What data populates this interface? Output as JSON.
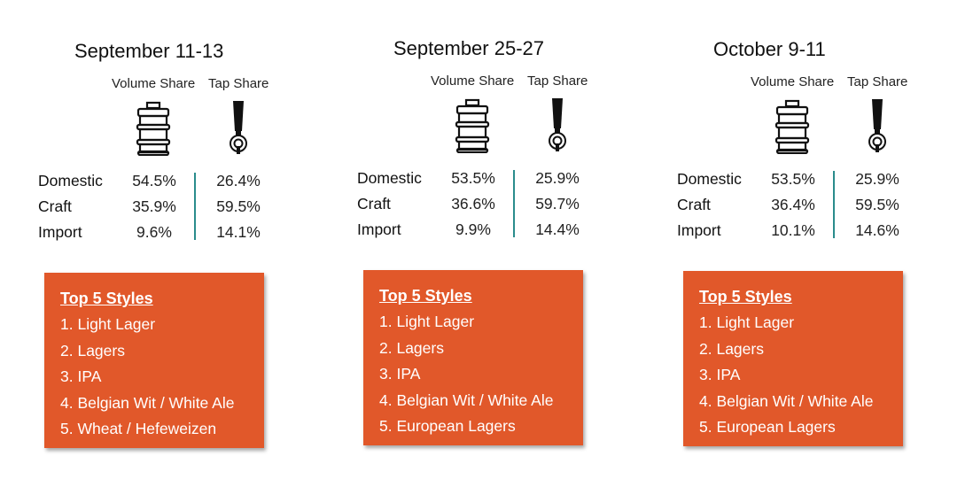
{
  "periods": [
    {
      "title": "September 11-13",
      "volume_header": "Volume Share",
      "tap_header": "Tap Share",
      "rows": [
        {
          "label": "Domestic",
          "volume": "54.5%",
          "tap": "26.4%"
        },
        {
          "label": "Craft",
          "volume": "35.9%",
          "tap": "59.5%"
        },
        {
          "label": "Import",
          "volume": "9.6%",
          "tap": "14.1%"
        }
      ],
      "top_styles_title": "Top 5 Styles",
      "top_styles": [
        "1. Light Lager",
        "2. Lagers",
        "3. IPA",
        "4. Belgian Wit / White Ale",
        "5. Wheat / Hefeweizen"
      ]
    },
    {
      "title": "September 25-27",
      "volume_header": "Volume Share",
      "tap_header": "Tap Share",
      "rows": [
        {
          "label": "Domestic",
          "volume": "53.5%",
          "tap": "25.9%"
        },
        {
          "label": "Craft",
          "volume": "36.6%",
          "tap": "59.7%"
        },
        {
          "label": "Import",
          "volume": "9.9%",
          "tap": "14.4%"
        }
      ],
      "top_styles_title": "Top 5 Styles",
      "top_styles": [
        "1. Light Lager",
        "2. Lagers",
        "3. IPA",
        "4. Belgian Wit / White Ale",
        "5. European Lagers"
      ]
    },
    {
      "title": "October 9-11",
      "volume_header": "Volume Share",
      "tap_header": "Tap Share",
      "rows": [
        {
          "label": "Domestic",
          "volume": "53.5%",
          "tap": "25.9%"
        },
        {
          "label": "Craft",
          "volume": "36.4%",
          "tap": "59.5%"
        },
        {
          "label": "Import",
          "volume": "10.1%",
          "tap": "14.6%"
        }
      ],
      "top_styles_title": "Top 5 Styles",
      "top_styles": [
        "1. Light Lager",
        "2. Lagers",
        "3. IPA",
        "4. Belgian Wit / White Ale",
        "5. European Lagers"
      ]
    }
  ],
  "icons": {
    "volume": "keg-icon",
    "tap": "beer-tap-handle-icon"
  },
  "colors": {
    "box": "#e1582a",
    "divider": "#2a8c8c",
    "text": "#111111"
  }
}
